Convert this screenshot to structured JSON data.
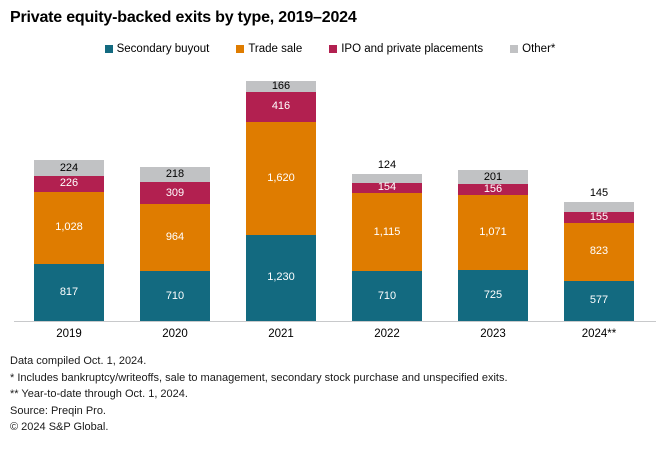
{
  "title": "Private equity-backed exits by type, 2019–2024",
  "legend": [
    {
      "label": "Secondary buyout",
      "color": "#136a80"
    },
    {
      "label": "Trade sale",
      "color": "#df7c00"
    },
    {
      "label": "IPO and private placements",
      "color": "#b22050"
    },
    {
      "label": "Other*",
      "color": "#c1c2c4"
    }
  ],
  "chart_data": {
    "type": "bar",
    "stacked": true,
    "title": "Private equity-backed exits by type, 2019–2024",
    "categories": [
      "2019",
      "2020",
      "2021",
      "2022",
      "2023",
      "2024**"
    ],
    "series": [
      {
        "name": "Secondary buyout",
        "color": "#136a80",
        "label_color": "#ffffff",
        "values": [
          817,
          710,
          1230,
          710,
          725,
          577
        ]
      },
      {
        "name": "Trade sale",
        "color": "#df7c00",
        "label_color": "#ffffff",
        "values": [
          1028,
          964,
          1620,
          1115,
          1071,
          823
        ]
      },
      {
        "name": "IPO and private placements",
        "color": "#b22050",
        "label_color": "#ffffff",
        "values": [
          226,
          309,
          416,
          154,
          156,
          155
        ]
      },
      {
        "name": "Other*",
        "color": "#c1c2c4",
        "label_color": "#000000",
        "values": [
          224,
          218,
          166,
          124,
          201,
          145
        ]
      }
    ],
    "totals": [
      2295,
      2201,
      3432,
      2103,
      2153,
      1700
    ],
    "ylim": [
      0,
      3432
    ],
    "grid": false,
    "legend_position": "top",
    "xlabel": "",
    "ylabel": ""
  },
  "footnotes": [
    "Data compiled Oct. 1, 2024.",
    "* Includes bankruptcy/writeoffs, sale to management, secondary stock purchase and unspecified exits.",
    "** Year-to-date through Oct. 1, 2024.",
    "Source: Preqin Pro.",
    "© 2024 S&P Global."
  ]
}
